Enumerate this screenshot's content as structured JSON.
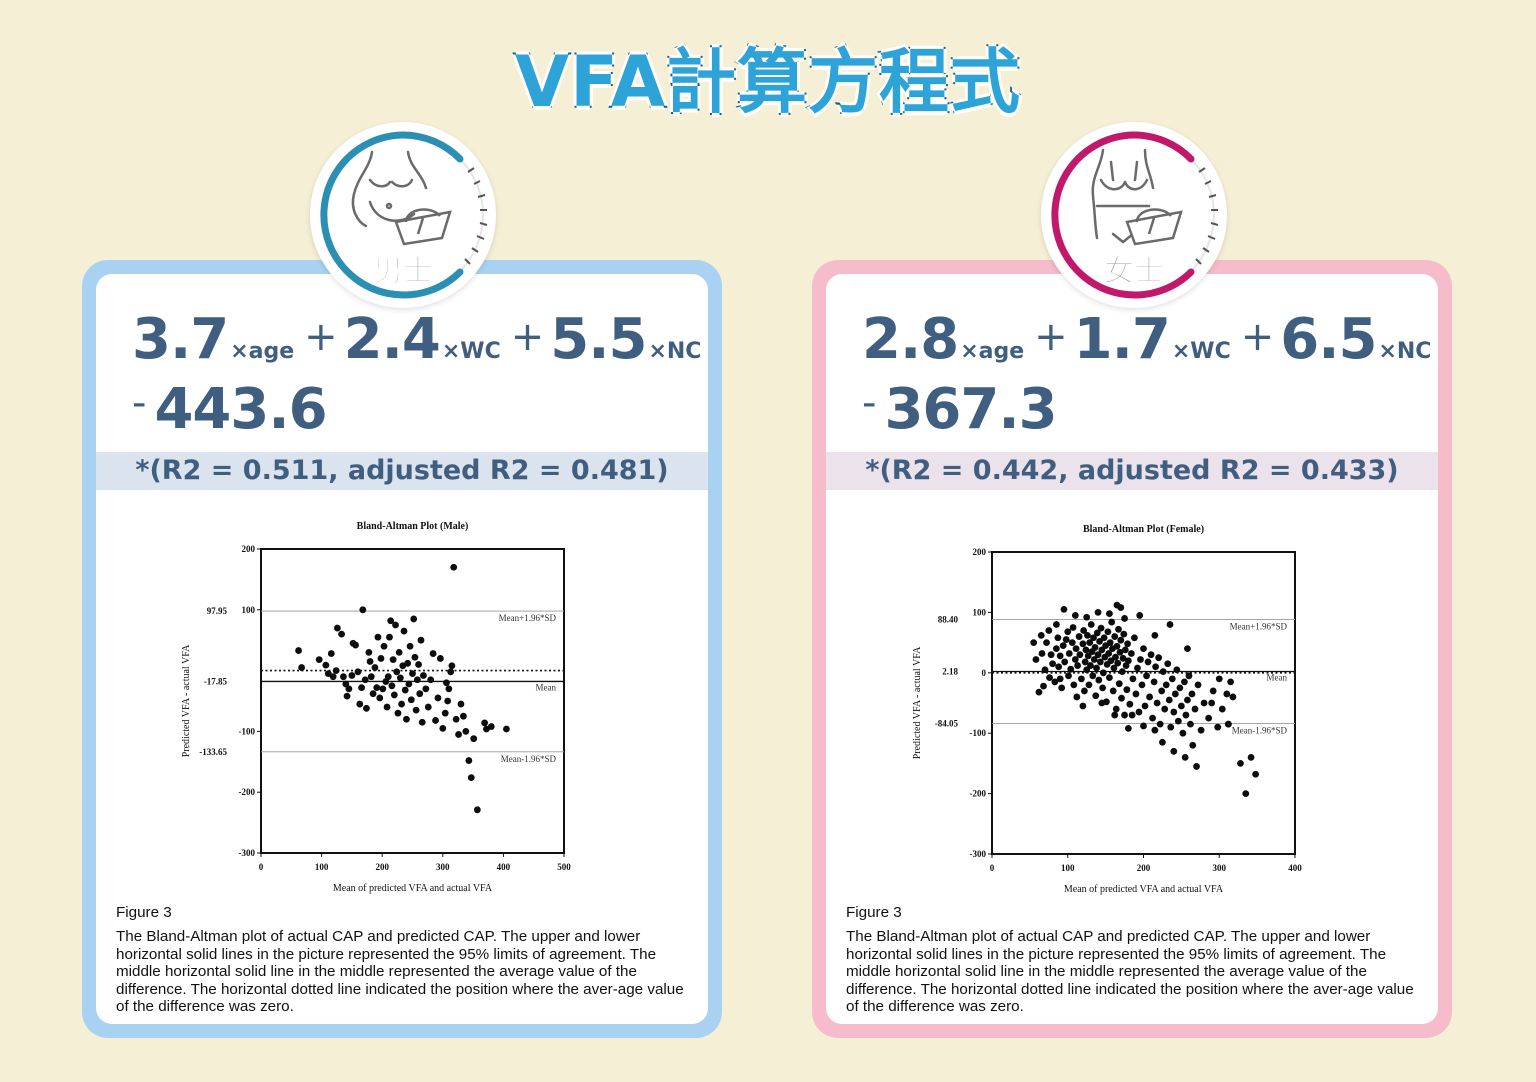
{
  "title": "VFA計算方程式",
  "male": {
    "badge_label": "男士",
    "icon": "male-body-scale-icon",
    "formula": {
      "c_age": "3.7",
      "v_age": "×age",
      "c_wc": "2.4",
      "v_wc": "×WC",
      "c_nc": "5.5",
      "v_nc": "×NC",
      "op_plus": "+",
      "op_minus": "-",
      "constant": "443.6"
    },
    "r2_text": "*(R2 = 0.511, adjusted R2 = 0.481)",
    "caption_title": "Figure 3",
    "caption_body": "The Bland-Altman plot of actual CAP and predicted CAP. The upper and lower horizontal solid lines in the picture represented the 95% limits of agreement. The middle horizontal solid line in the middle represented the average value of the difference. The horizontal dotted line indicated the position where the aver-age value of the difference was zero."
  },
  "female": {
    "badge_label": "女士",
    "icon": "female-body-scale-icon",
    "formula": {
      "c_age": "2.8",
      "v_age": "×age",
      "c_wc": "1.7",
      "v_wc": "×WC",
      "c_nc": "6.5",
      "v_nc": "×NC",
      "op_plus": "+",
      "op_minus": "-",
      "constant": "367.3"
    },
    "r2_text": "*(R2 = 0.442, adjusted R2 = 0.433)",
    "caption_title": "Figure 3",
    "caption_body": "The Bland-Altman plot of actual CAP and predicted CAP. The upper and lower horizontal solid lines in the picture represented the 95% limits of agreement. The middle horizontal solid line in the middle represented the average value of the difference. The horizontal dotted line indicated the position where the aver-age value of the difference was zero."
  },
  "colors": {
    "male_accent": "#2b8fb3",
    "female_accent": "#c2186b",
    "male_frame": "#a9d2f2",
    "female_frame": "#f7bccb",
    "formula_text": "#3f5e80"
  },
  "chart_data": [
    {
      "type": "scatter",
      "title": "Bland-Altman Plot (Male)",
      "xlabel": "Mean of predicted VFA and actual VFA",
      "ylabel": "Predicted VFA - actual VFA",
      "xlim": [
        0,
        500
      ],
      "ylim": [
        -300,
        200
      ],
      "xticks": [
        0,
        100,
        200,
        300,
        400,
        500
      ],
      "yticks": [
        -300,
        -200,
        -100,
        100,
        200
      ],
      "hlines": [
        {
          "y": 97.95,
          "style": "solid",
          "label": "Mean+1.96*SD",
          "value_label": "97.95"
        },
        {
          "y": -17.85,
          "style": "solid",
          "label": "Mean",
          "value_label": "-17.85"
        },
        {
          "y": -133.65,
          "style": "solid",
          "label": "Mean-1.96*SD",
          "value_label": "-133.65"
        },
        {
          "y": 0,
          "style": "dotted",
          "label": "",
          "value_label": ""
        }
      ],
      "points": [
        [
          62,
          33
        ],
        [
          67,
          5
        ],
        [
          96,
          18
        ],
        [
          107,
          9
        ],
        [
          111,
          -5
        ],
        [
          116,
          28
        ],
        [
          119,
          -10
        ],
        [
          124,
          0
        ],
        [
          126,
          70
        ],
        [
          133,
          60
        ],
        [
          136,
          -10
        ],
        [
          140,
          -22
        ],
        [
          142,
          -42
        ],
        [
          145,
          -30
        ],
        [
          150,
          -8
        ],
        [
          152,
          45
        ],
        [
          156,
          42
        ],
        [
          160,
          -2
        ],
        [
          163,
          -55
        ],
        [
          166,
          -28
        ],
        [
          168,
          100
        ],
        [
          172,
          -15
        ],
        [
          174,
          -62
        ],
        [
          178,
          30
        ],
        [
          180,
          15
        ],
        [
          182,
          -10
        ],
        [
          185,
          -38
        ],
        [
          188,
          5
        ],
        [
          191,
          -28
        ],
        [
          193,
          55
        ],
        [
          196,
          -45
        ],
        [
          198,
          20
        ],
        [
          201,
          -30
        ],
        [
          203,
          40
        ],
        [
          206,
          -18
        ],
        [
          208,
          -60
        ],
        [
          210,
          -10
        ],
        [
          212,
          55
        ],
        [
          214,
          82
        ],
        [
          216,
          -25
        ],
        [
          218,
          18
        ],
        [
          220,
          -40
        ],
        [
          222,
          75
        ],
        [
          224,
          -2
        ],
        [
          226,
          -70
        ],
        [
          228,
          30
        ],
        [
          230,
          -12
        ],
        [
          232,
          -55
        ],
        [
          234,
          8
        ],
        [
          236,
          65
        ],
        [
          238,
          -32
        ],
        [
          240,
          -80
        ],
        [
          242,
          12
        ],
        [
          244,
          -22
        ],
        [
          246,
          40
        ],
        [
          248,
          -48
        ],
        [
          250,
          -5
        ],
        [
          252,
          85
        ],
        [
          254,
          22
        ],
        [
          256,
          -65
        ],
        [
          258,
          -15
        ],
        [
          260,
          10
        ],
        [
          262,
          -38
        ],
        [
          264,
          50
        ],
        [
          266,
          -85
        ],
        [
          268,
          -8
        ],
        [
          272,
          -30
        ],
        [
          276,
          -60
        ],
        [
          280,
          -15
        ],
        [
          284,
          28
        ],
        [
          288,
          -82
        ],
        [
          292,
          -45
        ],
        [
          296,
          20
        ],
        [
          300,
          -95
        ],
        [
          304,
          -70
        ],
        [
          306,
          -20
        ],
        [
          308,
          -50
        ],
        [
          310,
          -30
        ],
        [
          313,
          -2
        ],
        [
          315,
          8
        ],
        [
          318,
          170
        ],
        [
          322,
          -80
        ],
        [
          326,
          -105
        ],
        [
          330,
          -55
        ],
        [
          334,
          -75
        ],
        [
          338,
          -100
        ],
        [
          343,
          -148
        ],
        [
          347,
          -176
        ],
        [
          351,
          -112
        ],
        [
          357,
          -229
        ],
        [
          369,
          -86
        ],
        [
          372,
          -96
        ],
        [
          380,
          -92
        ],
        [
          405,
          -96
        ]
      ]
    },
    {
      "type": "scatter",
      "title": "Bland-Altman Plot (Female)",
      "xlabel": "Mean of predicted VFA and actual VFA",
      "ylabel": "Predicted VFA - actual VFA",
      "xlim": [
        0,
        400
      ],
      "ylim": [
        -300,
        200
      ],
      "xticks": [
        0,
        100,
        200,
        300,
        400
      ],
      "yticks": [
        -300,
        -200,
        -100,
        0,
        100,
        200
      ],
      "hlines": [
        {
          "y": 88.4,
          "style": "solid",
          "label": "Mean+1.96*SD",
          "value_label": "88.40"
        },
        {
          "y": 2.18,
          "style": "solid",
          "label": "Mean",
          "value_label": "2.18"
        },
        {
          "y": -84.05,
          "style": "solid",
          "label": "Mean-1.96*SD",
          "value_label": "-84.05"
        },
        {
          "y": 0,
          "style": "dotted",
          "label": "",
          "value_label": ""
        }
      ],
      "points": [
        [
          58,
          22
        ],
        [
          62,
          -32
        ],
        [
          66,
          32
        ],
        [
          70,
          5
        ],
        [
          72,
          50
        ],
        [
          76,
          -8
        ],
        [
          78,
          30
        ],
        [
          80,
          15
        ],
        [
          83,
          -15
        ],
        [
          85,
          40
        ],
        [
          87,
          58
        ],
        [
          88,
          10
        ],
        [
          90,
          28
        ],
        [
          92,
          -25
        ],
        [
          94,
          45
        ],
        [
          96,
          18
        ],
        [
          98,
          55
        ],
        [
          100,
          68
        ],
        [
          101,
          -5
        ],
        [
          102,
          32
        ],
        [
          104,
          6
        ],
        [
          106,
          50
        ],
        [
          107,
          75
        ],
        [
          108,
          -20
        ],
        [
          110,
          22
        ],
        [
          111,
          40
        ],
        [
          112,
          -40
        ],
        [
          113,
          12
        ],
        [
          115,
          60
        ],
        [
          116,
          30
        ],
        [
          118,
          -10
        ],
        [
          120,
          48
        ],
        [
          121,
          70
        ],
        [
          122,
          -30
        ],
        [
          123,
          18
        ],
        [
          124,
          38
        ],
        [
          125,
          5
        ],
        [
          126,
          62
        ],
        [
          127,
          28
        ],
        [
          128,
          -20
        ],
        [
          129,
          50
        ],
        [
          130,
          12
        ],
        [
          131,
          80
        ],
        [
          132,
          35
        ],
        [
          133,
          -5
        ],
        [
          134,
          58
        ],
        [
          135,
          22
        ],
        [
          136,
          42
        ],
        [
          137,
          -38
        ],
        [
          138,
          8
        ],
        [
          139,
          66
        ],
        [
          140,
          30
        ],
        [
          141,
          -12
        ],
        [
          142,
          52
        ],
        [
          143,
          18
        ],
        [
          144,
          74
        ],
        [
          145,
          38
        ],
        [
          146,
          -25
        ],
        [
          147,
          0
        ],
        [
          148,
          58
        ],
        [
          149,
          26
        ],
        [
          150,
          45
        ],
        [
          151,
          -48
        ],
        [
          152,
          14
        ],
        [
          153,
          68
        ],
        [
          154,
          32
        ],
        [
          155,
          -8
        ],
        [
          156,
          50
        ],
        [
          157,
          20
        ],
        [
          158,
          84
        ],
        [
          159,
          40
        ],
        [
          160,
          -30
        ],
        [
          161,
          8
        ],
        [
          162,
          60
        ],
        [
          163,
          26
        ],
        [
          164,
          -60
        ],
        [
          165,
          44
        ],
        [
          166,
          16
        ],
        [
          167,
          72
        ],
        [
          168,
          -18
        ],
        [
          169,
          34
        ],
        [
          170,
          54
        ],
        [
          171,
          -42
        ],
        [
          172,
          2
        ],
        [
          173,
          24
        ],
        [
          174,
          64
        ],
        [
          175,
          -70
        ],
        [
          176,
          38
        ],
        [
          177,
          12
        ],
        [
          178,
          -28
        ],
        [
          179,
          48
        ],
        [
          180,
          20
        ],
        [
          182,
          -52
        ],
        [
          184,
          32
        ],
        [
          186,
          -10
        ],
        [
          188,
          58
        ],
        [
          190,
          -35
        ],
        [
          192,
          8
        ],
        [
          194,
          -65
        ],
        [
          196,
          22
        ],
        [
          198,
          -20
        ],
        [
          200,
          40
        ],
        [
          202,
          -55
        ],
        [
          204,
          -5
        ],
        [
          206,
          18
        ],
        [
          208,
          -40
        ],
        [
          210,
          30
        ],
        [
          212,
          -75
        ],
        [
          214,
          -15
        ],
        [
          216,
          10
        ],
        [
          218,
          -50
        ],
        [
          220,
          25
        ],
        [
          222,
          -85
        ],
        [
          224,
          -30
        ],
        [
          226,
          2
        ],
        [
          228,
          -60
        ],
        [
          230,
          -20
        ],
        [
          232,
          15
        ],
        [
          234,
          -45
        ],
        [
          236,
          -90
        ],
        [
          238,
          -10
        ],
        [
          240,
          -65
        ],
        [
          242,
          -35
        ],
        [
          244,
          5
        ],
        [
          246,
          -80
        ],
        [
          248,
          -25
        ],
        [
          250,
          -55
        ],
        [
          252,
          -100
        ],
        [
          254,
          -15
        ],
        [
          256,
          -70
        ],
        [
          258,
          -45
        ],
        [
          260,
          -5
        ],
        [
          262,
          -85
        ],
        [
          264,
          -35
        ],
        [
          268,
          -60
        ],
        [
          272,
          -20
        ],
        [
          276,
          -95
        ],
        [
          280,
          -50
        ],
        [
          286,
          -75
        ],
        [
          292,
          -30
        ],
        [
          298,
          -90
        ],
        [
          304,
          -60
        ],
        [
          310,
          -35
        ],
        [
          312,
          -85
        ],
        [
          318,
          -40
        ],
        [
          240,
          -130
        ],
        [
          255,
          -140
        ],
        [
          270,
          -155
        ],
        [
          300,
          -10
        ],
        [
          95,
          105
        ],
        [
          110,
          95
        ],
        [
          125,
          92
        ],
        [
          140,
          100
        ],
        [
          155,
          98
        ],
        [
          170,
          108
        ],
        [
          195,
          95
        ],
        [
          165,
          112
        ],
        [
          85,
          80
        ],
        [
          75,
          70
        ],
        [
          65,
          62
        ],
        [
          55,
          50
        ],
        [
          215,
          62
        ],
        [
          235,
          80
        ],
        [
          290,
          -50
        ],
        [
          315,
          -15
        ],
        [
          328,
          -150
        ],
        [
          335,
          -200
        ],
        [
          342,
          -140
        ],
        [
          348,
          -168
        ],
        [
          312,
          -85
        ],
        [
          265,
          -120
        ],
        [
          225,
          -115
        ],
        [
          180,
          -92
        ],
        [
          185,
          -70
        ],
        [
          200,
          -88
        ],
        [
          215,
          -95
        ],
        [
          258,
          40
        ],
        [
          68,
          -22
        ],
        [
          90,
          -10
        ],
        [
          175,
          90
        ],
        [
          162,
          -70
        ],
        [
          145,
          -50
        ],
        [
          120,
          -55
        ]
      ]
    }
  ]
}
